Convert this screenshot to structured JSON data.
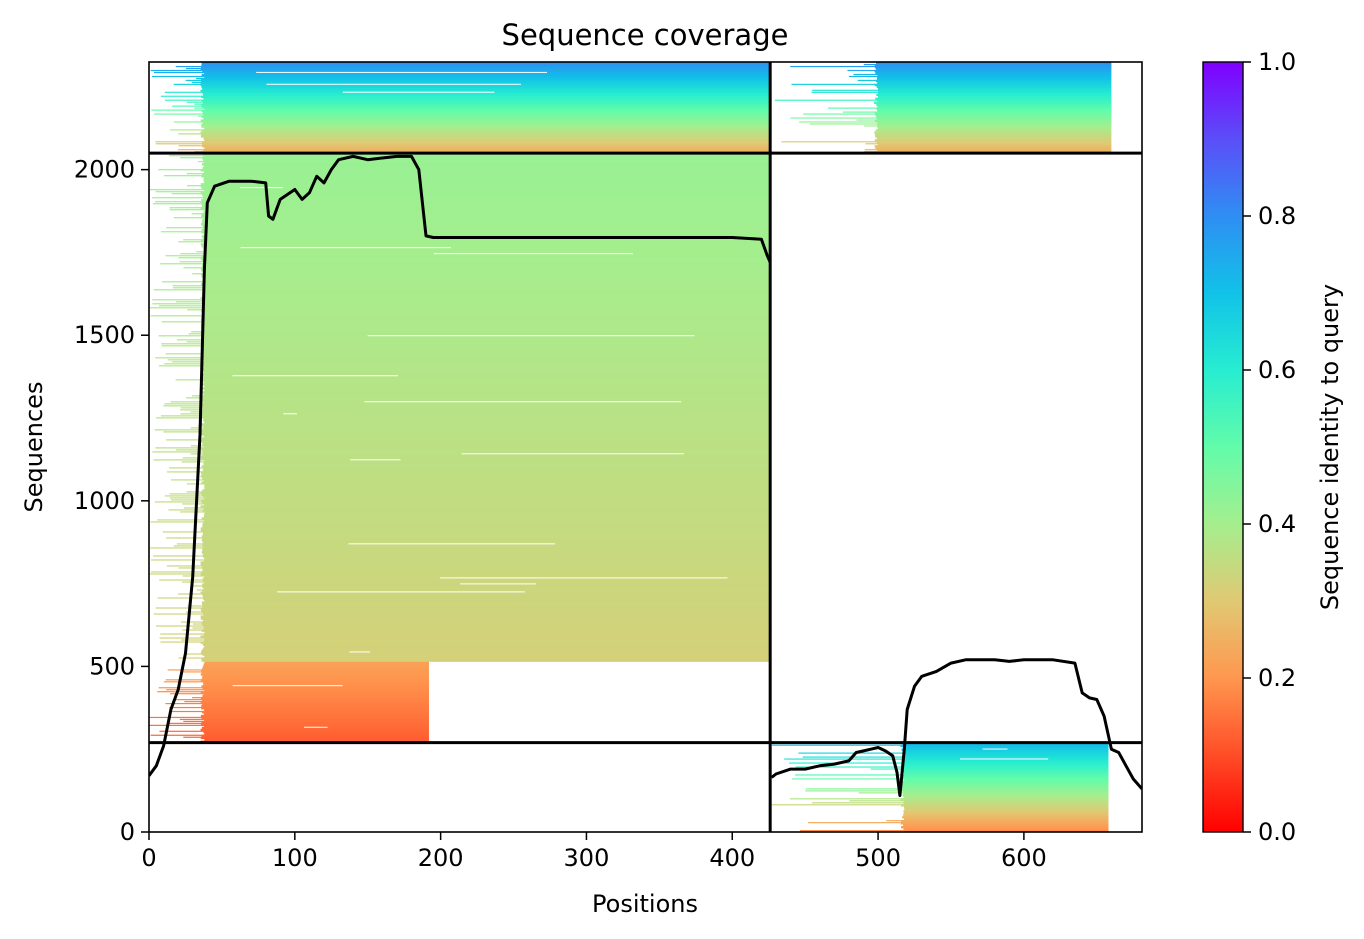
{
  "chart_data": {
    "type": "heatmap",
    "title": "Sequence coverage",
    "xlabel": "Positions",
    "ylabel": "Sequences",
    "xlim": [
      0,
      681
    ],
    "ylim": [
      0,
      2325
    ],
    "xticks": [
      0,
      100,
      200,
      300,
      400,
      500,
      600
    ],
    "yticks": [
      0,
      500,
      1000,
      1500,
      2000
    ],
    "colorbar": {
      "label": "Sequence identity to query",
      "colormap": "rainbow_r",
      "range": [
        0.0,
        1.0
      ],
      "ticks": [
        0.0,
        0.2,
        0.4,
        0.6,
        0.8,
        1.0
      ],
      "tick_labels": [
        "0.0",
        "0.2",
        "0.4",
        "0.6",
        "0.8",
        "1.0"
      ]
    },
    "dividers": {
      "vertical_x": [
        426
      ],
      "horizontal_y": [
        270,
        2050
      ]
    },
    "coverage_blocks": [
      {
        "x0": 0,
        "x1": 426,
        "y0": 270,
        "y1": 515,
        "identity_bottom": 0.12,
        "identity_top": 0.22,
        "fill_x0": 38,
        "fill_x1": 192,
        "ragged_x0": 0
      },
      {
        "x0": 0,
        "x1": 426,
        "y0": 515,
        "y1": 2050,
        "identity_bottom": 0.32,
        "identity_top": 0.42,
        "fill_x0": 38,
        "fill_x1": 426,
        "ragged_x0": 0
      },
      {
        "x0": 0,
        "x1": 426,
        "y0": 2050,
        "y1": 2325,
        "identity_bottom": 0.24,
        "identity_top": 0.8,
        "fill_x0": 38,
        "fill_x1": 426,
        "ragged_x0": 0
      },
      {
        "x0": 426,
        "x1": 681,
        "y0": 2050,
        "y1": 2325,
        "identity_bottom": 0.24,
        "identity_top": 0.8,
        "fill_x0": 500,
        "fill_x1": 660,
        "ragged_x0": 426
      },
      {
        "x0": 426,
        "x1": 681,
        "y0": 0,
        "y1": 270,
        "identity_bottom": 0.18,
        "identity_top": 0.72,
        "fill_x0": 518,
        "fill_x1": 658,
        "ragged_x0": 426
      }
    ],
    "series": [
      {
        "x": [
          0,
          5,
          10,
          15,
          20,
          25,
          30,
          35,
          38,
          40,
          45,
          55,
          70,
          80,
          82,
          85,
          90,
          100,
          105,
          110,
          115,
          120,
          125,
          130,
          140,
          150,
          160,
          170,
          180,
          185,
          190,
          195,
          250,
          300,
          350,
          400,
          420,
          424,
          426
        ],
        "y": [
          170,
          200,
          260,
          370,
          430,
          540,
          770,
          1200,
          1700,
          1900,
          1950,
          1965,
          1965,
          1960,
          1860,
          1850,
          1910,
          1940,
          1910,
          1930,
          1980,
          1960,
          2000,
          2030,
          2040,
          2030,
          2035,
          2040,
          2040,
          2000,
          1800,
          1795,
          1795,
          1795,
          1795,
          1795,
          1790,
          1740,
          1720
        ]
      },
      {
        "x": [
          427,
          430,
          440,
          450,
          460,
          470,
          480,
          485,
          490,
          495,
          500,
          505,
          510,
          513,
          515,
          518,
          520,
          525,
          530,
          540,
          550,
          560,
          580,
          590,
          600,
          620,
          635,
          640,
          645,
          650,
          655,
          660,
          665,
          670,
          675,
          681
        ],
        "y": [
          165,
          175,
          190,
          190,
          200,
          205,
          215,
          240,
          245,
          250,
          255,
          245,
          230,
          180,
          110,
          250,
          370,
          440,
          470,
          485,
          510,
          520,
          520,
          515,
          520,
          520,
          510,
          420,
          405,
          400,
          350,
          250,
          240,
          200,
          160,
          130
        ]
      }
    ]
  }
}
